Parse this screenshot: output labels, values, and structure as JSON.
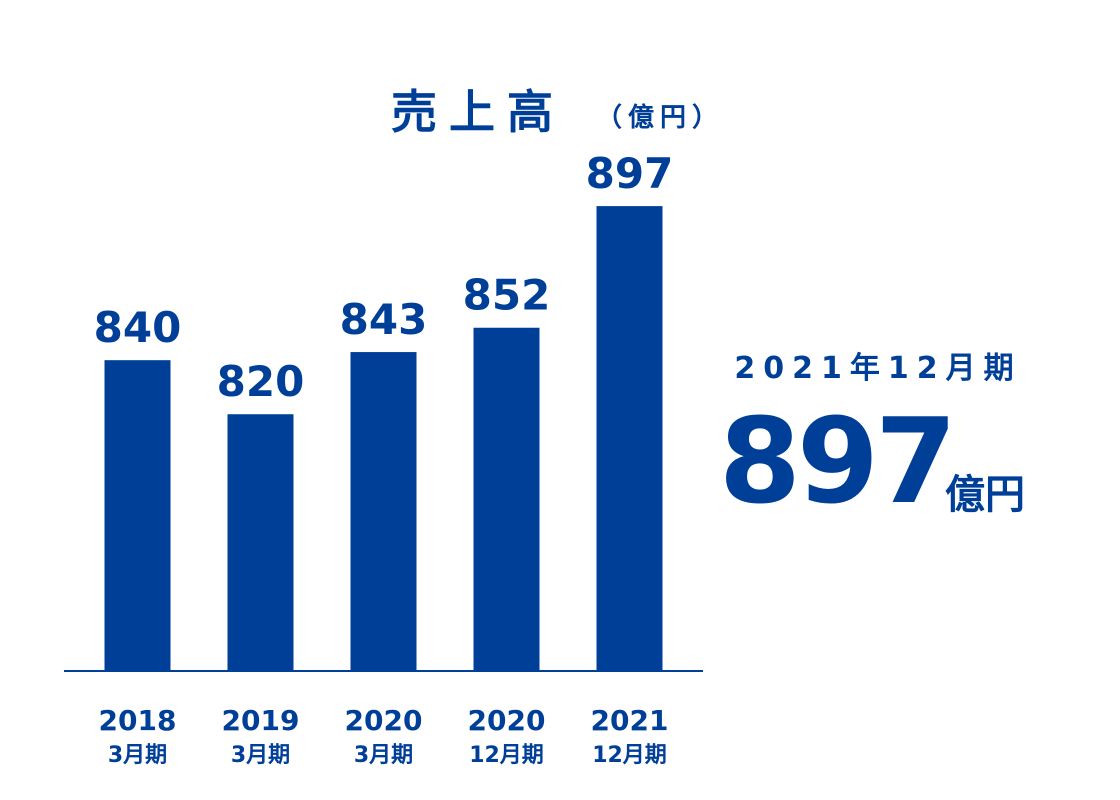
{
  "chart_data": {
    "type": "bar",
    "title": "売上高",
    "unit_label": "（億円）",
    "categories": [
      "2018",
      "2019",
      "2020",
      "2020",
      "2021"
    ],
    "period_labels": [
      "3月期",
      "3月期",
      "3月期",
      "12月期",
      "12月期"
    ],
    "values": [
      840,
      820,
      843,
      852,
      897
    ],
    "color": "#003f98",
    "ylim": [
      725,
      900
    ]
  },
  "callout": {
    "label": "2021年12月期",
    "value": 897,
    "unit": "億円"
  }
}
